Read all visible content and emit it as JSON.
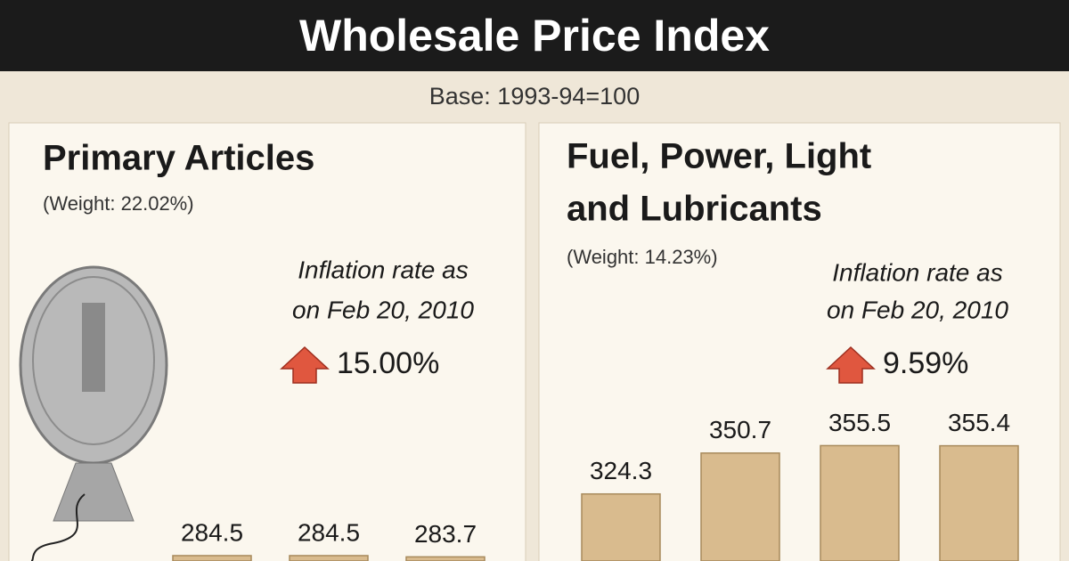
{
  "title": "Wholesale Price Index",
  "subtitle": "Base: 1993-94=100",
  "chart_data": [
    {
      "type": "bar",
      "title": [
        "Primary Articles"
      ],
      "subtitle": "(Weight: 22.02%)",
      "annotation": [
        "Inflation rate as",
        "on Feb 20, 2010"
      ],
      "inflation": "15.00%",
      "categories": [
        null,
        null,
        null
      ],
      "values": [
        284.5,
        284.5,
        283.7
      ],
      "color": "#d9bb8e"
    },
    {
      "type": "bar",
      "title": [
        "Fuel, Power, Light",
        "and Lubricants"
      ],
      "subtitle": "(Weight: 14.23%)",
      "annotation": [
        "Inflation rate as",
        "on Feb 20, 2010"
      ],
      "inflation": "9.59%",
      "categories": [
        null,
        null,
        null,
        null
      ],
      "values": [
        324.3,
        350.7,
        355.5,
        355.4
      ],
      "color": "#d9bb8e"
    }
  ]
}
